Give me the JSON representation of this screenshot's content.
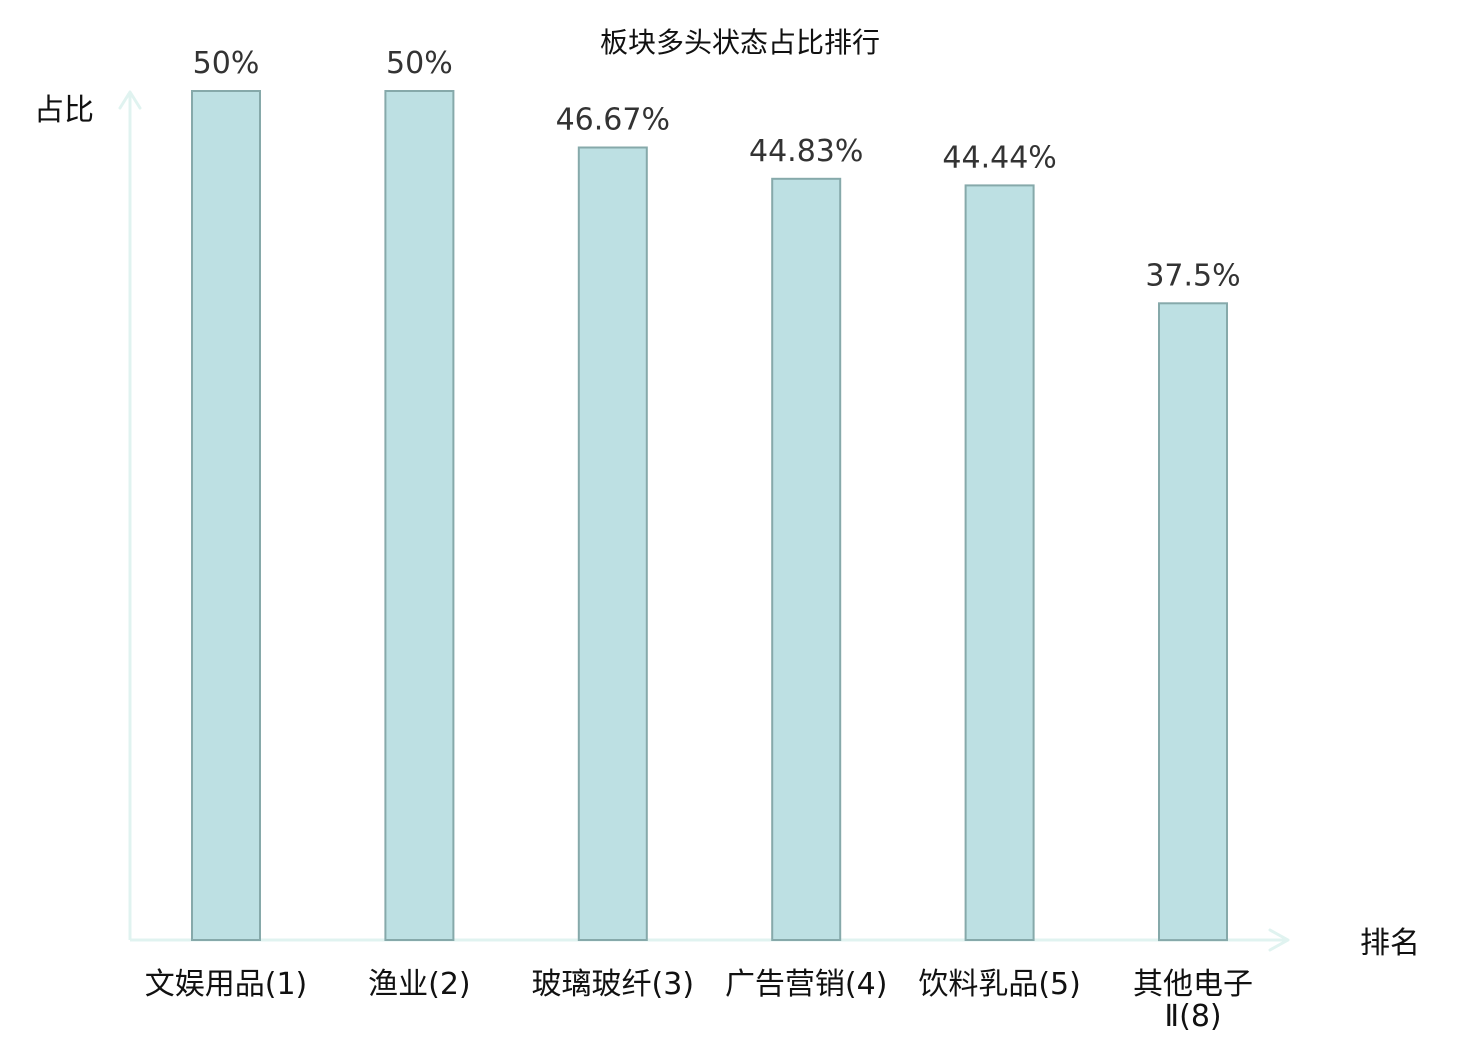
{
  "chart_data": {
    "type": "bar",
    "title": "板块多头状态占比排行",
    "xlabel": "排名",
    "ylabel": "占比",
    "categories": [
      "文娱用品(1)",
      "渔业(2)",
      "玻璃玻纤(3)",
      "广告营销(4)",
      "饮料乳品(5)",
      "其他电子Ⅱ(8)"
    ],
    "category_lines": [
      [
        "文娱用品(1)"
      ],
      [
        "渔业(2)"
      ],
      [
        "玻璃玻纤(3)"
      ],
      [
        "广告营销(4)"
      ],
      [
        "饮料乳品(5)"
      ],
      [
        "其他电子",
        "Ⅱ(8)"
      ]
    ],
    "values": [
      50,
      50,
      46.67,
      44.83,
      44.44,
      37.5
    ],
    "value_labels": [
      "50%",
      "50%",
      "46.67%",
      "44.83%",
      "44.44%",
      "37.5%"
    ],
    "highlight_index": 5,
    "ylim": [
      0,
      50
    ],
    "grid": false,
    "legend": "none"
  },
  "colors": {
    "bar_fill": "#bde0e3",
    "bar_stroke": "#86a9aa",
    "axis": "#e0f3f0",
    "highlight_text": "#e0141b",
    "normal_text": "#111111",
    "value_text": "#333333"
  }
}
